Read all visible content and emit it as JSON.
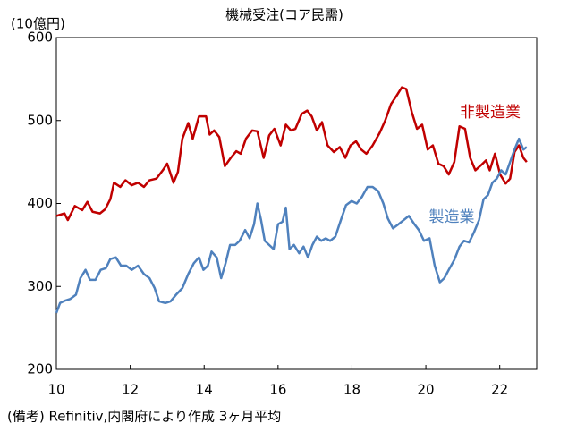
{
  "chart_data": {
    "type": "line",
    "title": "機械受注(コア民需)",
    "y_label": "(10億円)",
    "note": "(備考) Refinitiv,内閣府により作成 3ヶ月平均",
    "xlim": [
      10,
      23
    ],
    "xticks": [
      10,
      12,
      14,
      16,
      18,
      20,
      22
    ],
    "ylim": [
      200,
      600
    ],
    "yticks": [
      200,
      300,
      400,
      500,
      600
    ],
    "grid": false,
    "series": [
      {
        "name": "非製造業",
        "color": "#c00000",
        "x": [
          10.0,
          10.22,
          10.31,
          10.5,
          10.7,
          10.84,
          10.98,
          11.18,
          11.32,
          11.46,
          11.56,
          11.73,
          11.87,
          12.04,
          12.21,
          12.37,
          12.52,
          12.71,
          12.88,
          13.0,
          13.17,
          13.29,
          13.41,
          13.57,
          13.69,
          13.86,
          14.05,
          14.15,
          14.27,
          14.41,
          14.56,
          14.72,
          14.87,
          14.99,
          15.13,
          15.3,
          15.44,
          15.61,
          15.76,
          15.9,
          16.07,
          16.21,
          16.35,
          16.47,
          16.64,
          16.79,
          16.91,
          17.05,
          17.19,
          17.34,
          17.51,
          17.67,
          17.82,
          17.96,
          18.11,
          18.25,
          18.39,
          18.56,
          18.75,
          18.9,
          19.06,
          19.21,
          19.35,
          19.47,
          19.62,
          19.76,
          19.9,
          20.05,
          20.19,
          20.34,
          20.48,
          20.62,
          20.77,
          20.91,
          21.06,
          21.2,
          21.34,
          21.49,
          21.63,
          21.73,
          21.87,
          22.01,
          22.16,
          22.28,
          22.4,
          22.52,
          22.64,
          22.73
        ],
        "values": [
          385,
          388,
          380,
          397,
          392,
          402,
          390,
          388,
          393,
          405,
          425,
          420,
          428,
          422,
          425,
          420,
          428,
          430,
          440,
          448,
          425,
          438,
          478,
          497,
          478,
          505,
          505,
          483,
          488,
          480,
          445,
          455,
          463,
          460,
          478,
          488,
          487,
          455,
          482,
          490,
          470,
          495,
          488,
          490,
          508,
          512,
          505,
          488,
          498,
          470,
          462,
          468,
          455,
          470,
          475,
          465,
          460,
          470,
          485,
          500,
          520,
          530,
          540,
          538,
          510,
          490,
          495,
          465,
          470,
          448,
          445,
          435,
          450,
          493,
          490,
          455,
          440,
          446,
          452,
          440,
          460,
          435,
          424,
          430,
          462,
          470,
          455,
          450
        ]
      },
      {
        "name": "製造業",
        "color": "#4f81bd",
        "x": [
          10.0,
          10.1,
          10.24,
          10.38,
          10.53,
          10.65,
          10.79,
          10.91,
          11.06,
          11.2,
          11.34,
          11.46,
          11.61,
          11.75,
          11.89,
          12.04,
          12.21,
          12.37,
          12.52,
          12.66,
          12.78,
          12.95,
          13.09,
          13.24,
          13.41,
          13.57,
          13.72,
          13.86,
          13.98,
          14.1,
          14.2,
          14.34,
          14.46,
          14.58,
          14.7,
          14.84,
          14.96,
          15.11,
          15.23,
          15.35,
          15.44,
          15.54,
          15.64,
          15.76,
          15.88,
          16.0,
          16.12,
          16.21,
          16.31,
          16.43,
          16.57,
          16.69,
          16.81,
          16.93,
          17.05,
          17.17,
          17.29,
          17.41,
          17.55,
          17.7,
          17.84,
          17.99,
          18.13,
          18.27,
          18.42,
          18.56,
          18.71,
          18.85,
          18.97,
          19.11,
          19.26,
          19.4,
          19.54,
          19.69,
          19.81,
          19.95,
          20.1,
          20.24,
          20.38,
          20.5,
          20.62,
          20.77,
          20.91,
          21.03,
          21.17,
          21.3,
          21.44,
          21.56,
          21.68,
          21.8,
          21.92,
          22.04,
          22.16,
          22.28,
          22.4,
          22.52,
          22.64,
          22.73
        ],
        "values": [
          268,
          280,
          283,
          285,
          290,
          310,
          320,
          308,
          308,
          320,
          322,
          333,
          335,
          325,
          325,
          320,
          325,
          315,
          310,
          298,
          282,
          280,
          282,
          290,
          298,
          315,
          328,
          335,
          320,
          325,
          342,
          335,
          310,
          328,
          350,
          350,
          355,
          368,
          358,
          375,
          400,
          380,
          355,
          350,
          345,
          375,
          378,
          395,
          345,
          350,
          340,
          348,
          335,
          350,
          360,
          355,
          358,
          355,
          360,
          380,
          398,
          403,
          400,
          408,
          420,
          420,
          415,
          400,
          382,
          370,
          375,
          380,
          385,
          375,
          368,
          355,
          358,
          325,
          305,
          310,
          320,
          332,
          348,
          355,
          353,
          365,
          380,
          405,
          410,
          425,
          430,
          440,
          435,
          450,
          465,
          478,
          465,
          468
        ]
      }
    ]
  }
}
